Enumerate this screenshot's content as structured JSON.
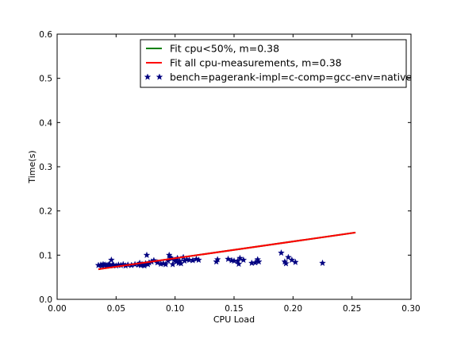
{
  "chart_data": {
    "type": "scatter",
    "title": "",
    "xlabel": "CPU Load",
    "ylabel": "Time(s)",
    "xlim": [
      0.0,
      0.3
    ],
    "ylim": [
      0.0,
      0.6
    ],
    "x_ticks": [
      "0.00",
      "0.05",
      "0.10",
      "0.15",
      "0.20",
      "0.25",
      "0.30"
    ],
    "y_ticks": [
      "0.0",
      "0.1",
      "0.2",
      "0.3",
      "0.4",
      "0.5",
      "0.6"
    ],
    "grid": false,
    "legend_position": "top-right",
    "series": [
      {
        "name": "Fit cpu<50%, m=0.38",
        "kind": "line",
        "color": "#008000",
        "x": [
          0.035,
          0.253
        ],
        "y": [
          0.068,
          0.151
        ]
      },
      {
        "name": "Fit all cpu-measurements, m=0.38",
        "kind": "line",
        "color": "#ff0000",
        "x": [
          0.035,
          0.253
        ],
        "y": [
          0.068,
          0.151
        ]
      },
      {
        "name": "bench=pagerank-impl=c-comp=gcc-env=native",
        "kind": "scatter",
        "marker": "star",
        "color": "#000080",
        "points": [
          [
            0.035,
            0.077
          ],
          [
            0.037,
            0.078
          ],
          [
            0.038,
            0.076
          ],
          [
            0.039,
            0.079
          ],
          [
            0.04,
            0.077
          ],
          [
            0.041,
            0.078
          ],
          [
            0.042,
            0.076
          ],
          [
            0.043,
            0.077
          ],
          [
            0.044,
            0.079
          ],
          [
            0.045,
            0.076
          ],
          [
            0.046,
            0.089
          ],
          [
            0.047,
            0.078
          ],
          [
            0.048,
            0.077
          ],
          [
            0.05,
            0.076
          ],
          [
            0.052,
            0.078
          ],
          [
            0.054,
            0.077
          ],
          [
            0.056,
            0.079
          ],
          [
            0.058,
            0.076
          ],
          [
            0.06,
            0.078
          ],
          [
            0.063,
            0.077
          ],
          [
            0.066,
            0.079
          ],
          [
            0.069,
            0.078
          ],
          [
            0.07,
            0.082
          ],
          [
            0.071,
            0.077
          ],
          [
            0.072,
            0.079
          ],
          [
            0.073,
            0.078
          ],
          [
            0.074,
            0.076
          ],
          [
            0.075,
            0.081
          ],
          [
            0.076,
            0.1
          ],
          [
            0.077,
            0.079
          ],
          [
            0.078,
            0.083
          ],
          [
            0.08,
            0.085
          ],
          [
            0.082,
            0.088
          ],
          [
            0.085,
            0.083
          ],
          [
            0.088,
            0.08
          ],
          [
            0.09,
            0.081
          ],
          [
            0.092,
            0.079
          ],
          [
            0.094,
            0.087
          ],
          [
            0.095,
            0.1
          ],
          [
            0.096,
            0.094
          ],
          [
            0.097,
            0.092
          ],
          [
            0.098,
            0.079
          ],
          [
            0.1,
            0.088
          ],
          [
            0.101,
            0.085
          ],
          [
            0.102,
            0.093
          ],
          [
            0.103,
            0.082
          ],
          [
            0.104,
            0.086
          ],
          [
            0.105,
            0.081
          ],
          [
            0.107,
            0.095
          ],
          [
            0.108,
            0.087
          ],
          [
            0.11,
            0.09
          ],
          [
            0.112,
            0.089
          ],
          [
            0.115,
            0.088
          ],
          [
            0.118,
            0.091
          ],
          [
            0.12,
            0.089
          ],
          [
            0.135,
            0.085
          ],
          [
            0.136,
            0.09
          ],
          [
            0.145,
            0.091
          ],
          [
            0.148,
            0.088
          ],
          [
            0.15,
            0.087
          ],
          [
            0.153,
            0.086
          ],
          [
            0.154,
            0.08
          ],
          [
            0.155,
            0.093
          ],
          [
            0.158,
            0.089
          ],
          [
            0.165,
            0.082
          ],
          [
            0.168,
            0.083
          ],
          [
            0.17,
            0.09
          ],
          [
            0.171,
            0.085
          ],
          [
            0.19,
            0.105
          ],
          [
            0.193,
            0.085
          ],
          [
            0.194,
            0.081
          ],
          [
            0.196,
            0.095
          ],
          [
            0.199,
            0.089
          ],
          [
            0.202,
            0.084
          ],
          [
            0.225,
            0.082
          ]
        ]
      }
    ]
  }
}
